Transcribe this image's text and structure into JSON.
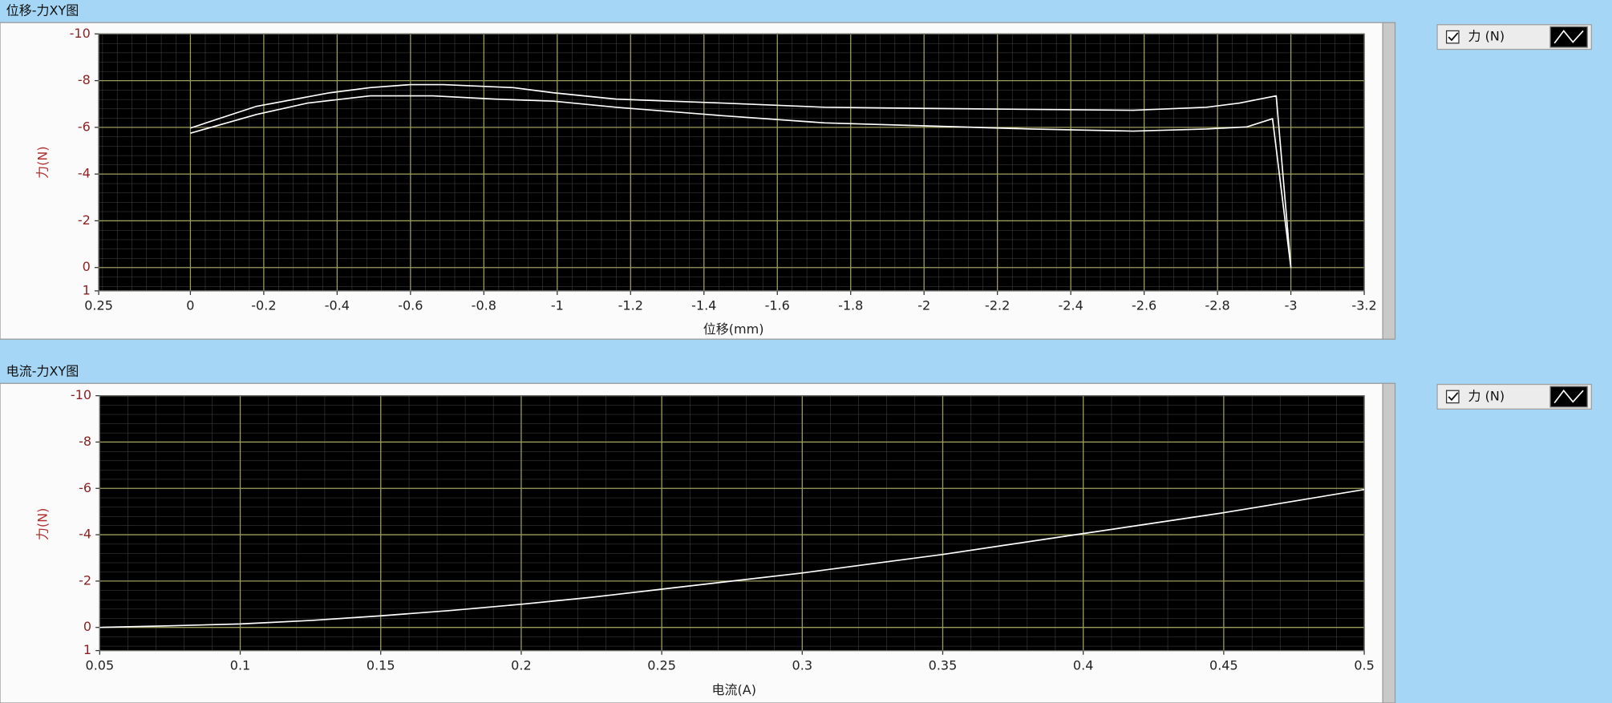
{
  "chart_data": [
    {
      "type": "line",
      "title": "位移-力XY图",
      "xlabel": "位移(mm)",
      "ylabel": "力(N)",
      "xlim": [
        0.25,
        -3.2
      ],
      "ylim": [
        1,
        -10
      ],
      "xticks": [
        0.25,
        0,
        -0.2,
        -0.4,
        -0.6,
        -0.8,
        -1,
        -1.2,
        -1.4,
        -1.6,
        -1.8,
        -2,
        -2.2,
        -2.4,
        -2.6,
        -2.8,
        -3,
        -3.2
      ],
      "yticks": [
        -10,
        -8,
        -6,
        -4,
        -2,
        0,
        1
      ],
      "grid": true,
      "grid_color": "#9c9c5c",
      "minor_grid_color": "#474747",
      "background": "#000000",
      "x": [
        0,
        -0.18,
        -0.32,
        -0.49,
        -0.66,
        -0.83,
        -0.99,
        -1.16,
        -1.45,
        -1.73,
        -2.01,
        -2.29,
        -2.57,
        -2.77,
        -2.88,
        -2.95,
        -3.0,
        -2.96,
        -2.86,
        -2.77,
        -2.57,
        -2.29,
        -2.01,
        -1.73,
        -1.45,
        -1.16,
        -0.99,
        -0.88,
        -0.69,
        -0.6,
        -0.49,
        -0.38,
        -0.18,
        0
      ],
      "series": [
        {
          "name": "力 (N)",
          "color": "#ffffff",
          "values": [
            -5.75,
            -6.55,
            -7.04,
            -7.35,
            -7.35,
            -7.21,
            -7.12,
            -6.86,
            -6.5,
            -6.19,
            -6.06,
            -5.93,
            -5.84,
            -5.93,
            -6.02,
            -6.37,
            0,
            -7.35,
            -7.04,
            -6.86,
            -6.73,
            -6.77,
            -6.81,
            -6.86,
            -7.04,
            -7.21,
            -7.48,
            -7.7,
            -7.83,
            -7.83,
            -7.7,
            -7.48,
            -6.9,
            -5.97
          ]
        }
      ]
    },
    {
      "type": "line",
      "title": "电流-力XY图",
      "xlabel": "电流(A)",
      "ylabel": "力(N)",
      "xlim": [
        0.05,
        0.5
      ],
      "ylim": [
        1,
        -10
      ],
      "xticks": [
        0.05,
        0.1,
        0.15,
        0.2,
        0.25,
        0.3,
        0.35,
        0.4,
        0.45,
        0.5
      ],
      "yticks": [
        -10,
        -8,
        -6,
        -4,
        -2,
        0,
        1
      ],
      "grid": true,
      "grid_color": "#9c9c5c",
      "minor_grid_color": "#474747",
      "background": "#000000",
      "x": [
        0.05,
        0.075,
        0.1,
        0.125,
        0.15,
        0.175,
        0.2,
        0.225,
        0.25,
        0.275,
        0.3,
        0.325,
        0.35,
        0.375,
        0.4,
        0.425,
        0.45,
        0.475,
        0.5
      ],
      "series": [
        {
          "name": "力 (N)",
          "color": "#ffffff",
          "values": [
            0,
            -0.07,
            -0.15,
            -0.3,
            -0.5,
            -0.73,
            -1.0,
            -1.3,
            -1.65,
            -2.0,
            -2.35,
            -2.75,
            -3.15,
            -3.6,
            -4.05,
            -4.5,
            -4.95,
            -5.45,
            -5.95
          ]
        }
      ]
    }
  ]
}
